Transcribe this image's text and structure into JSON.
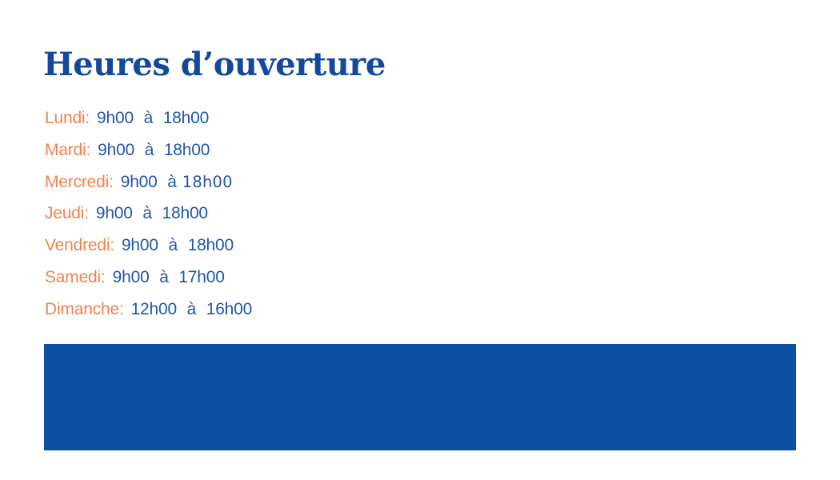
{
  "page": {
    "title": "Heures d’ouverture",
    "colors": {
      "title_blue": "#14489c",
      "time_blue": "#2356a7",
      "day_orange": "#f5814f",
      "banner_blue": "#0c4ea2",
      "background": "#ffffff"
    }
  },
  "hours": {
    "items": [
      {
        "day": "Lundi:",
        "time": "9h00 à 18h00",
        "time_end": ""
      },
      {
        "day": "Mardi:",
        "time": "9h00 à 18h00",
        "time_end": ""
      },
      {
        "day": "Mercredi:",
        "time": "9h00 à",
        "time_end": "18h00"
      },
      {
        "day": "Jeudi:",
        "time": "9h00 à 18h00",
        "time_end": ""
      },
      {
        "day": "Vendredi:",
        "time": "9h00 à 18h00",
        "time_end": ""
      },
      {
        "day": "Samedi:",
        "time": "9h00 à 17h00",
        "time_end": ""
      },
      {
        "day": "Dimanche:",
        "time": "12h00 à 16h00",
        "time_end": ""
      }
    ]
  }
}
